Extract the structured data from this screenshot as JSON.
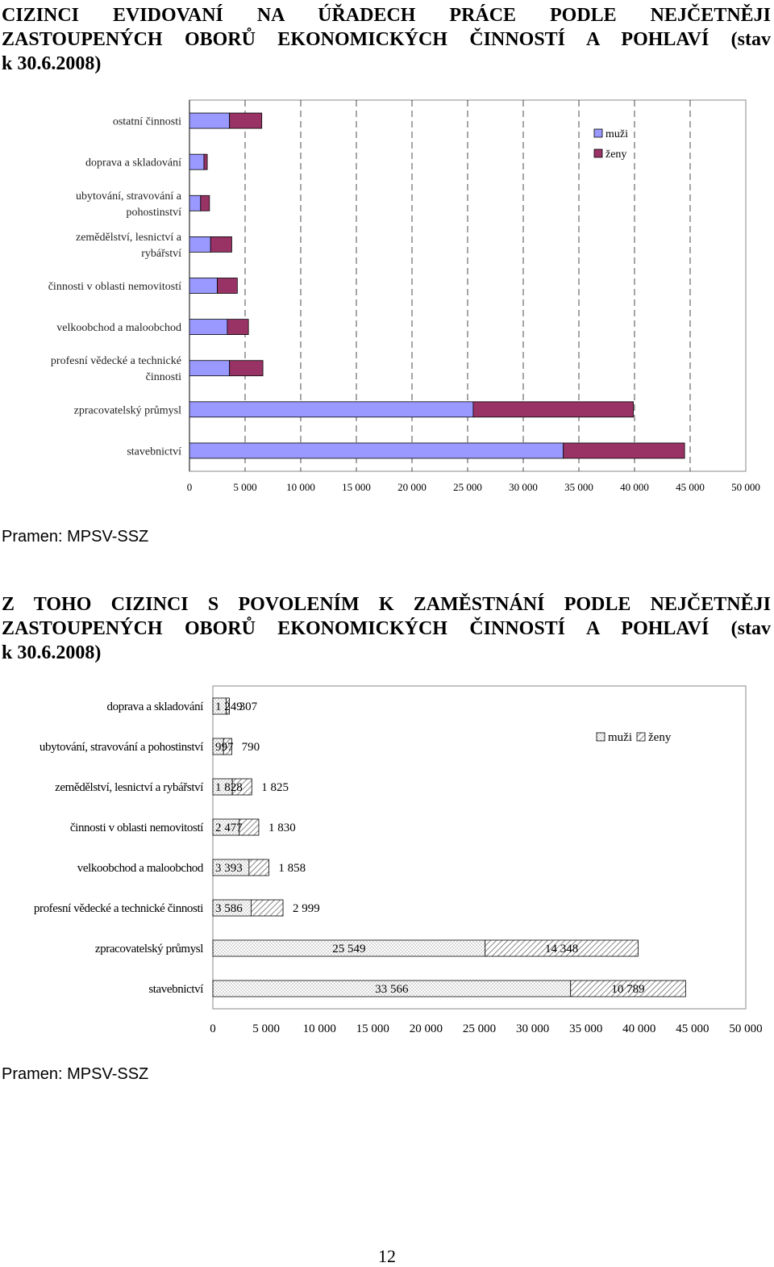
{
  "page": {
    "heading1": [
      "CIZINCI EVIDOVANÍ NA ÚŘADECH PRÁCE PODLE NEJČETNĚJI",
      "ZASTOUPENÝCH OBORŮ EKONOMICKÝCH ČINNOSTÍ A POHLAVÍ (stav",
      "k 30.6.2008)"
    ],
    "source1": "Pramen: MPSV-SSZ",
    "heading2": [
      "Z TOHO CIZINCI S POVOLENÍM K ZAMĚSTNÁNÍ PODLE NEJČETNĚJI",
      "ZASTOUPENÝCH OBORŮ EKONOMICKÝCH ČINNOSTÍ A POHLAVÍ (stav",
      "k 30.6.2008)"
    ],
    "source2": "Pramen: MPSV-SSZ",
    "page_number": "12"
  },
  "colors": {
    "men_chart1": "#9999ff",
    "women_chart1": "#993366",
    "bar_outline": "#000000"
  },
  "chart_data": [
    {
      "type": "bar",
      "orientation": "horizontal",
      "stacked": true,
      "categories": [
        "ostatní činnosti",
        "doprava a skladování",
        "ubytování, stravování a pohostinství",
        "zemědělství, lesnictví a rybářství",
        "činnosti v oblasti nemovitostí",
        "velkoobchod a maloobchod",
        "profesní vědecké a technické činnosti",
        "zpracovatelský průmysl",
        "stavebnictví"
      ],
      "series": [
        {
          "name": "muži",
          "values": [
            3600,
            1300,
            1000,
            1900,
            2500,
            3400,
            3600,
            25500,
            33600
          ]
        },
        {
          "name": "ženy",
          "values": [
            2900,
            300,
            800,
            1900,
            1800,
            1900,
            3000,
            14400,
            10900
          ]
        }
      ],
      "xlim": [
        0,
        50000
      ],
      "xticks": [
        "0",
        "5 000",
        "10 000",
        "15 000",
        "20 000",
        "25 000",
        "30 000",
        "35 000",
        "40 000",
        "45 000",
        "50 000"
      ],
      "grid": true,
      "legend": "top-right"
    },
    {
      "type": "bar",
      "orientation": "horizontal",
      "stacked": true,
      "categories": [
        "doprava a skladování",
        "ubytování, stravování a pohostinství",
        "zemědělství, lesnictví a rybářství",
        "činnosti v oblasti nemovitostí",
        "velkoobchod a maloobchod",
        "profesní vědecké a technické činnosti",
        "zpracovatelský průmysl",
        "stavebnictví"
      ],
      "series": [
        {
          "name": "muži",
          "values": [
            1249,
            997,
            1828,
            2477,
            3393,
            3586,
            25549,
            33566
          ],
          "labels": [
            "1 249",
            "997",
            "1 828",
            "2 477",
            "3 393",
            "3 586",
            "25 549",
            "33 566"
          ]
        },
        {
          "name": "ženy",
          "values": [
            307,
            790,
            1825,
            1830,
            1858,
            2999,
            14348,
            10789
          ],
          "labels": [
            "307",
            "790",
            "1 825",
            "1 830",
            "1 858",
            "2 999",
            "14 348",
            "10 789"
          ]
        }
      ],
      "xlim": [
        0,
        50000
      ],
      "xticks": [
        "0",
        "5 000",
        "10 000",
        "15 000",
        "20 000",
        "25 000",
        "30 000",
        "35 000",
        "40 000",
        "45 000",
        "50 000"
      ],
      "grid": false,
      "legend": "top-right"
    }
  ]
}
